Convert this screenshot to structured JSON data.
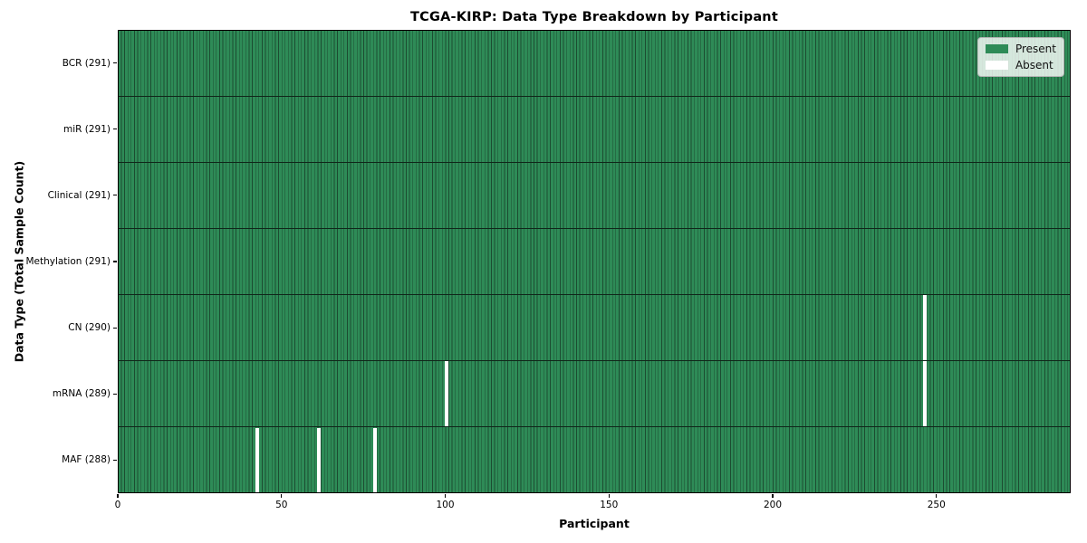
{
  "figure": {
    "background": "#ffffff"
  },
  "chart_data": {
    "type": "heatmap",
    "title": "TCGA-KIRP: Data Type Breakdown by Participant",
    "xlabel": "Participant",
    "ylabel": "Data Type (Total Sample Count)",
    "x_ticks": [
      0,
      50,
      100,
      150,
      200,
      250
    ],
    "xlim": [
      0,
      291
    ],
    "n_participants": 291,
    "grid": false,
    "rows": [
      {
        "data_type": "BCR",
        "label": "BCR (291)",
        "present_count": 291,
        "total": 291,
        "missing_participants": []
      },
      {
        "data_type": "miR",
        "label": "miR (291)",
        "present_count": 291,
        "total": 291,
        "missing_participants": []
      },
      {
        "data_type": "Clinical",
        "label": "Clinical (291)",
        "present_count": 291,
        "total": 291,
        "missing_participants": []
      },
      {
        "data_type": "Methylation",
        "label": "Methylation (291)",
        "present_count": 291,
        "total": 291,
        "missing_participants": []
      },
      {
        "data_type": "CN",
        "label": "CN (290)",
        "present_count": 290,
        "total": 291,
        "missing_participants": [
          246
        ]
      },
      {
        "data_type": "mRNA",
        "label": "mRNA (289)",
        "present_count": 289,
        "total": 291,
        "missing_participants": [
          100,
          246
        ]
      },
      {
        "data_type": "MAF",
        "label": "MAF (288)",
        "present_count": 288,
        "total": 291,
        "missing_participants": [
          42,
          61,
          78
        ]
      }
    ],
    "legend": {
      "position": "upper right",
      "items": [
        {
          "label": "Present",
          "color": "#2e8b57"
        },
        {
          "label": "Absent",
          "color": "#ffffff"
        }
      ]
    },
    "colors": {
      "present": "#2e8b57",
      "absent": "#ffffff",
      "cell_edge": "#1c4c31",
      "row_divider": "#10261a",
      "frame": "#000000",
      "text": "#000000"
    }
  }
}
